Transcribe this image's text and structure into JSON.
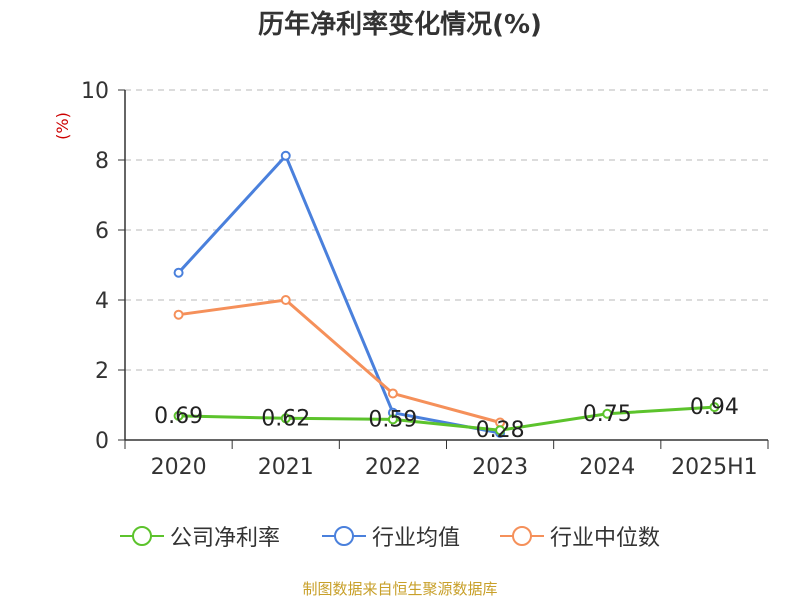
{
  "chart_data": {
    "type": "line",
    "title": "历年净利率变化情况(%)",
    "ylabel": "(%)",
    "ylim": [
      0,
      10
    ],
    "yticks": [
      0,
      2,
      4,
      6,
      8,
      10
    ],
    "grid": true,
    "legend_position": "bottom",
    "categories": [
      "2020",
      "2021",
      "2022",
      "2023",
      "2024",
      "2025H1"
    ],
    "series": [
      {
        "name": "公司净利率",
        "color": "#5cc32c",
        "values": [
          0.69,
          0.62,
          0.59,
          0.28,
          0.75,
          0.94
        ],
        "labels": [
          "0.69",
          "0.62",
          "0.59",
          "0.28",
          "0.75",
          "0.94"
        ]
      },
      {
        "name": "行业均值",
        "color": "#4a80dc",
        "values": [
          4.78,
          8.12,
          0.78,
          0.2,
          null,
          null
        ]
      },
      {
        "name": "行业中位数",
        "color": "#f5905a",
        "values": [
          3.58,
          4.0,
          1.33,
          0.5,
          null,
          null
        ]
      }
    ]
  },
  "footer": {
    "source": "制图数据来自恒生聚源数据库"
  }
}
